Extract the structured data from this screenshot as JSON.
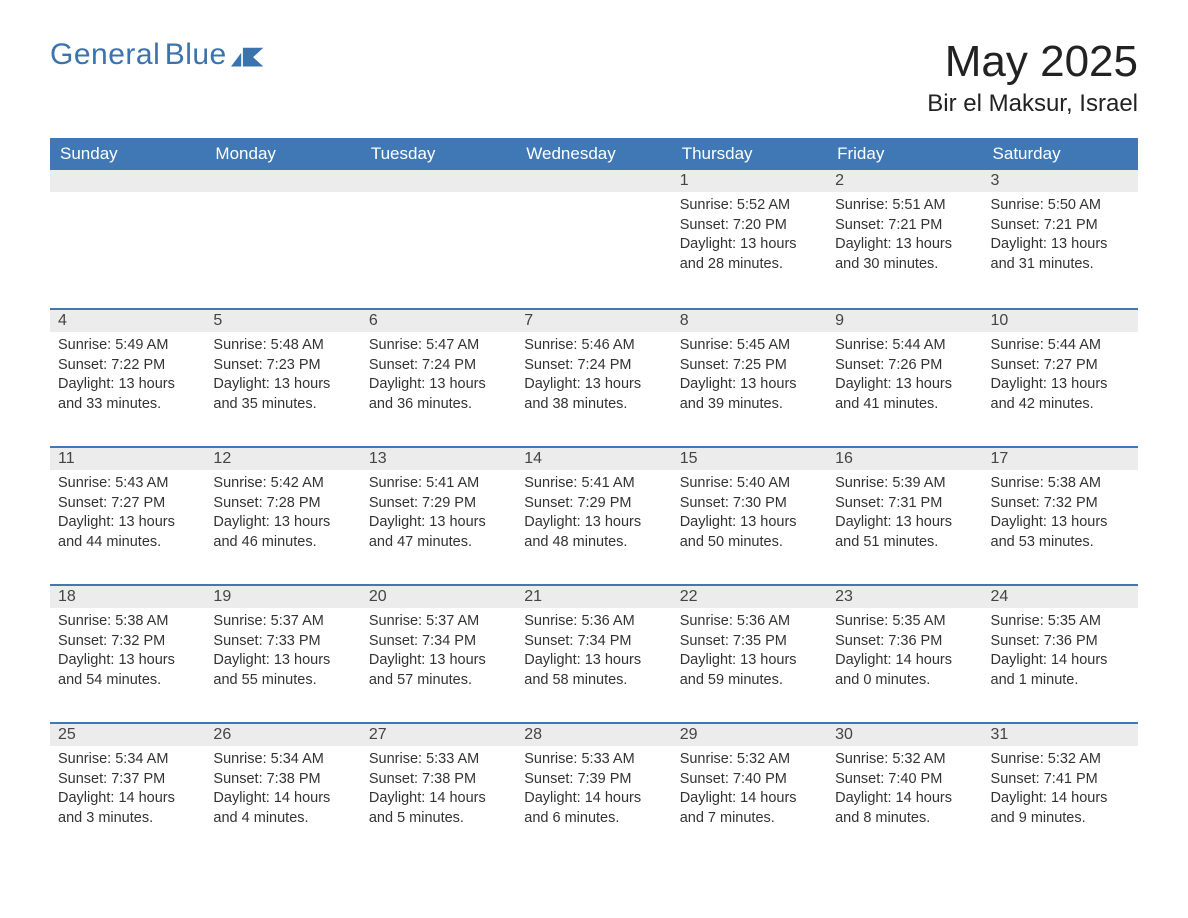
{
  "brand": {
    "line1": "General",
    "line2": "Blue"
  },
  "title": "May 2025",
  "location": "Bir el Maksur, Israel",
  "colors": {
    "header_bg": "#3f78b5",
    "header_text": "#ffffff",
    "daynum_bg": "#ececec",
    "row_border": "#3f78b5",
    "text": "#333333",
    "brand": "#3a73ae",
    "page_bg": "#ffffff"
  },
  "font": {
    "family": "Arial",
    "header_size_pt": 13,
    "title_size_pt": 33,
    "location_size_pt": 18,
    "body_size_pt": 11
  },
  "day_headers": [
    "Sunday",
    "Monday",
    "Tuesday",
    "Wednesday",
    "Thursday",
    "Friday",
    "Saturday"
  ],
  "leading_blanks": 4,
  "days": [
    {
      "n": 1,
      "sunrise": "5:52 AM",
      "sunset": "7:20 PM",
      "daylight": "13 hours and 28 minutes."
    },
    {
      "n": 2,
      "sunrise": "5:51 AM",
      "sunset": "7:21 PM",
      "daylight": "13 hours and 30 minutes."
    },
    {
      "n": 3,
      "sunrise": "5:50 AM",
      "sunset": "7:21 PM",
      "daylight": "13 hours and 31 minutes."
    },
    {
      "n": 4,
      "sunrise": "5:49 AM",
      "sunset": "7:22 PM",
      "daylight": "13 hours and 33 minutes."
    },
    {
      "n": 5,
      "sunrise": "5:48 AM",
      "sunset": "7:23 PM",
      "daylight": "13 hours and 35 minutes."
    },
    {
      "n": 6,
      "sunrise": "5:47 AM",
      "sunset": "7:24 PM",
      "daylight": "13 hours and 36 minutes."
    },
    {
      "n": 7,
      "sunrise": "5:46 AM",
      "sunset": "7:24 PM",
      "daylight": "13 hours and 38 minutes."
    },
    {
      "n": 8,
      "sunrise": "5:45 AM",
      "sunset": "7:25 PM",
      "daylight": "13 hours and 39 minutes."
    },
    {
      "n": 9,
      "sunrise": "5:44 AM",
      "sunset": "7:26 PM",
      "daylight": "13 hours and 41 minutes."
    },
    {
      "n": 10,
      "sunrise": "5:44 AM",
      "sunset": "7:27 PM",
      "daylight": "13 hours and 42 minutes."
    },
    {
      "n": 11,
      "sunrise": "5:43 AM",
      "sunset": "7:27 PM",
      "daylight": "13 hours and 44 minutes."
    },
    {
      "n": 12,
      "sunrise": "5:42 AM",
      "sunset": "7:28 PM",
      "daylight": "13 hours and 46 minutes."
    },
    {
      "n": 13,
      "sunrise": "5:41 AM",
      "sunset": "7:29 PM",
      "daylight": "13 hours and 47 minutes."
    },
    {
      "n": 14,
      "sunrise": "5:41 AM",
      "sunset": "7:29 PM",
      "daylight": "13 hours and 48 minutes."
    },
    {
      "n": 15,
      "sunrise": "5:40 AM",
      "sunset": "7:30 PM",
      "daylight": "13 hours and 50 minutes."
    },
    {
      "n": 16,
      "sunrise": "5:39 AM",
      "sunset": "7:31 PM",
      "daylight": "13 hours and 51 minutes."
    },
    {
      "n": 17,
      "sunrise": "5:38 AM",
      "sunset": "7:32 PM",
      "daylight": "13 hours and 53 minutes."
    },
    {
      "n": 18,
      "sunrise": "5:38 AM",
      "sunset": "7:32 PM",
      "daylight": "13 hours and 54 minutes."
    },
    {
      "n": 19,
      "sunrise": "5:37 AM",
      "sunset": "7:33 PM",
      "daylight": "13 hours and 55 minutes."
    },
    {
      "n": 20,
      "sunrise": "5:37 AM",
      "sunset": "7:34 PM",
      "daylight": "13 hours and 57 minutes."
    },
    {
      "n": 21,
      "sunrise": "5:36 AM",
      "sunset": "7:34 PM",
      "daylight": "13 hours and 58 minutes."
    },
    {
      "n": 22,
      "sunrise": "5:36 AM",
      "sunset": "7:35 PM",
      "daylight": "13 hours and 59 minutes."
    },
    {
      "n": 23,
      "sunrise": "5:35 AM",
      "sunset": "7:36 PM",
      "daylight": "14 hours and 0 minutes."
    },
    {
      "n": 24,
      "sunrise": "5:35 AM",
      "sunset": "7:36 PM",
      "daylight": "14 hours and 1 minute."
    },
    {
      "n": 25,
      "sunrise": "5:34 AM",
      "sunset": "7:37 PM",
      "daylight": "14 hours and 3 minutes."
    },
    {
      "n": 26,
      "sunrise": "5:34 AM",
      "sunset": "7:38 PM",
      "daylight": "14 hours and 4 minutes."
    },
    {
      "n": 27,
      "sunrise": "5:33 AM",
      "sunset": "7:38 PM",
      "daylight": "14 hours and 5 minutes."
    },
    {
      "n": 28,
      "sunrise": "5:33 AM",
      "sunset": "7:39 PM",
      "daylight": "14 hours and 6 minutes."
    },
    {
      "n": 29,
      "sunrise": "5:32 AM",
      "sunset": "7:40 PM",
      "daylight": "14 hours and 7 minutes."
    },
    {
      "n": 30,
      "sunrise": "5:32 AM",
      "sunset": "7:40 PM",
      "daylight": "14 hours and 8 minutes."
    },
    {
      "n": 31,
      "sunrise": "5:32 AM",
      "sunset": "7:41 PM",
      "daylight": "14 hours and 9 minutes."
    }
  ],
  "labels": {
    "sunrise": "Sunrise:",
    "sunset": "Sunset:",
    "daylight": "Daylight:"
  }
}
